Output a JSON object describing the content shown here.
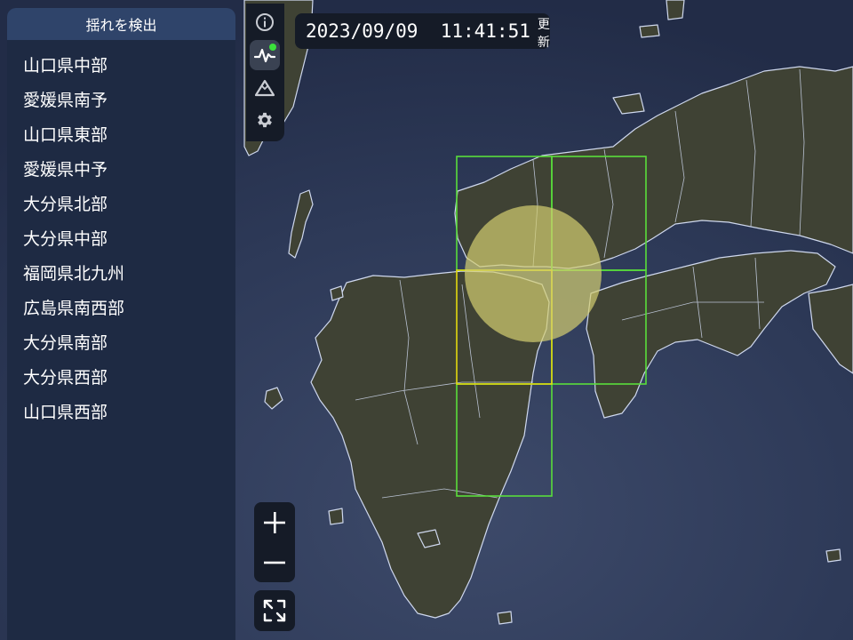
{
  "map": {
    "region": "Western Japan (Kyushu / Chugoku / Shikoku)",
    "highlight_circle_color": "#d4cf70",
    "grid_green_color": "#59dd3b",
    "grid_yellow_color": "#e3d90f"
  },
  "panel": {
    "title": "揺れを検出",
    "regions": [
      "山口県中部",
      "愛媛県南予",
      "山口県東部",
      "愛媛県中予",
      "大分県北部",
      "大分県中部",
      "福岡県北九州",
      "広島県南西部",
      "大分県南部",
      "大分県西部",
      "山口県西部"
    ]
  },
  "toolbar": {
    "items": [
      {
        "name": "info",
        "icon": "info-icon"
      },
      {
        "name": "shake",
        "icon": "waveform-icon",
        "active": true,
        "indicator_color": "#3be13b"
      },
      {
        "name": "terrain",
        "icon": "mountain-icon"
      },
      {
        "name": "settings",
        "icon": "gear-icon"
      }
    ]
  },
  "status": {
    "timestamp": "2023/09/09  11:41:51",
    "suffix": "更新"
  },
  "zoom": {
    "zoom_in": "+",
    "zoom_out": "−"
  }
}
